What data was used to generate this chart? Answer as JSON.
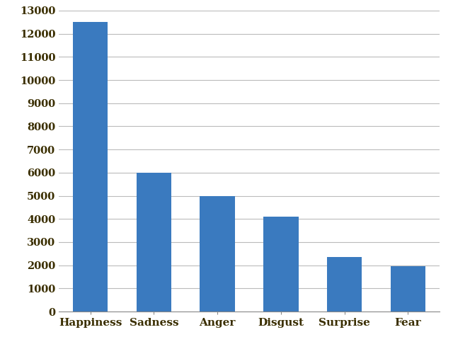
{
  "categories": [
    "Happiness",
    "Sadness",
    "Anger",
    "Disgust",
    "Surprise",
    "Fear"
  ],
  "values": [
    12500,
    6000,
    5000,
    4100,
    2350,
    1950
  ],
  "bar_color": "#3a7abf",
  "ylim": [
    0,
    13000
  ],
  "yticks": [
    0,
    1000,
    2000,
    3000,
    4000,
    5000,
    6000,
    7000,
    8000,
    9000,
    10000,
    11000,
    12000,
    13000
  ],
  "background_color": "#ffffff",
  "grid_color": "#bbbbbb",
  "bar_width": 0.55,
  "tick_label_color": "#3a2e00",
  "tick_fontsize": 10.5,
  "xlabel_fontsize": 11
}
